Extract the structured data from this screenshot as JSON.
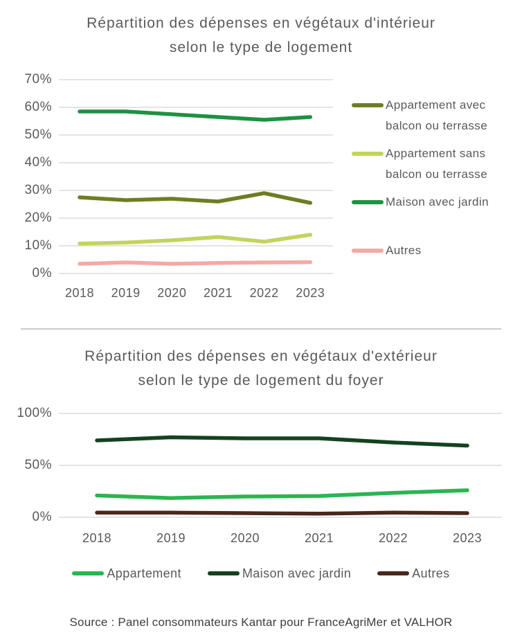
{
  "source": "Source : Panel consommateurs Kantar pour FranceAgriMer et VALHOR",
  "colors": {
    "text_gray": "#595959",
    "gridline": "#dcdcdc",
    "divider": "#c9c9c9",
    "source_text": "#3d3d3d"
  },
  "chart_data": [
    {
      "type": "line",
      "title": "Répartition des dépenses en végétaux d'intérieur selon le type de logement",
      "title_lines": [
        "Répartition des dépenses en végétaux d'intérieur",
        "selon le type de logement"
      ],
      "categories": [
        "2018",
        "2019",
        "2020",
        "2021",
        "2022",
        "2023"
      ],
      "series": [
        {
          "name": "Appartement avec balcon ou terrasse",
          "color": "#6f7d21",
          "values": [
            27.5,
            26.5,
            27,
            26,
            29,
            25.5
          ]
        },
        {
          "name": "Appartement sans balcon ou terrasse",
          "color": "#c3d35f",
          "values": [
            10.8,
            11.2,
            12,
            13.2,
            11.5,
            14
          ]
        },
        {
          "name": "Maison avec jardin",
          "color": "#1f9141",
          "values": [
            58.5,
            58.5,
            57.5,
            56.5,
            55.5,
            56.5
          ]
        },
        {
          "name": "Autres",
          "color": "#f4a9a5",
          "values": [
            3.5,
            4,
            3.5,
            3.8,
            4,
            4.1
          ]
        }
      ],
      "xlabel": "",
      "ylabel": "",
      "ylim": [
        0,
        70
      ],
      "yticks": [
        "70%",
        "60%",
        "50%",
        "40%",
        "30%",
        "20%",
        "10%",
        "0%"
      ],
      "grid": true,
      "legend_position": "right"
    },
    {
      "type": "line",
      "title": "Répartition des dépenses en végétaux d'extérieur selon le type de logement du foyer",
      "title_lines": [
        "Répartition des dépenses en végétaux d'extérieur",
        "selon le type de logement du foyer"
      ],
      "categories": [
        "2018",
        "2019",
        "2020",
        "2021",
        "2022",
        "2023"
      ],
      "series": [
        {
          "name": "Appartement",
          "color": "#2ab551",
          "values": [
            21,
            18.5,
            20,
            20.5,
            23.5,
            26
          ]
        },
        {
          "name": "Maison avec jardin",
          "color": "#14421f",
          "values": [
            74,
            77,
            76,
            76,
            72,
            69
          ]
        },
        {
          "name": "Autres",
          "color": "#49281d",
          "values": [
            4.5,
            4.5,
            4,
            3.5,
            4.5,
            4
          ]
        }
      ],
      "xlabel": "",
      "ylabel": "",
      "ylim": [
        0,
        100
      ],
      "yticks": [
        "100%",
        "50%",
        "0%"
      ],
      "grid": true,
      "legend_position": "bottom"
    }
  ]
}
